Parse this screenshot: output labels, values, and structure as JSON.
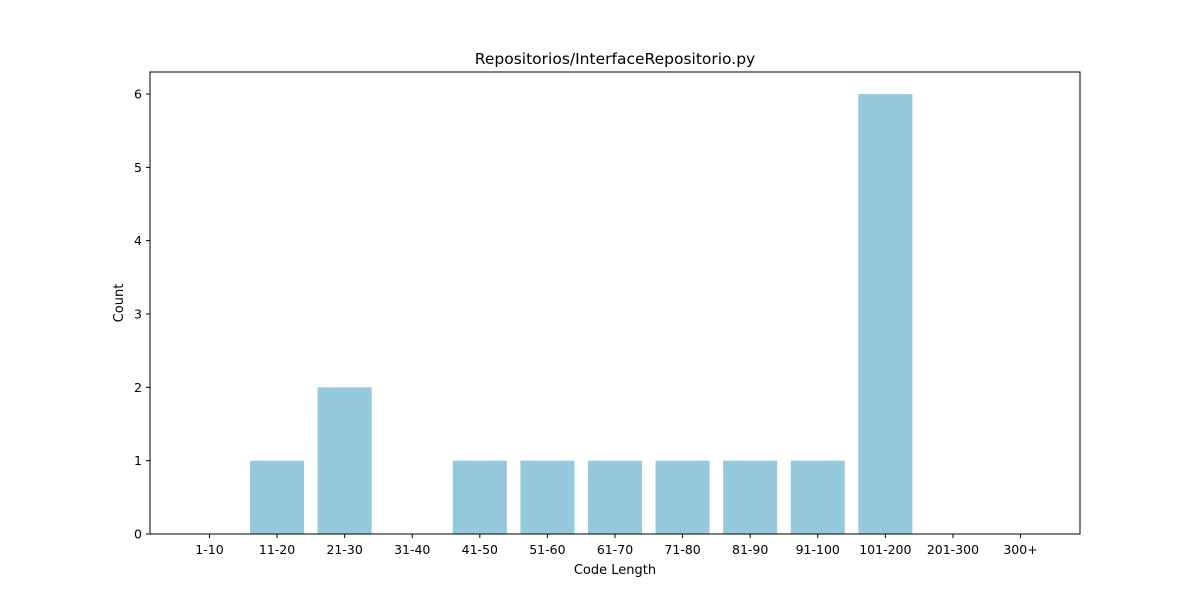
{
  "chart_data": {
    "type": "bar",
    "title": "Repositorios/InterfaceRepositorio.py",
    "xlabel": "Code Length",
    "ylabel": "Count",
    "categories": [
      "1-10",
      "11-20",
      "21-30",
      "31-40",
      "41-50",
      "51-60",
      "61-70",
      "71-80",
      "81-90",
      "91-100",
      "101-200",
      "201-300",
      "300+"
    ],
    "values": [
      0,
      1,
      2,
      0,
      1,
      1,
      1,
      1,
      1,
      1,
      6,
      0,
      0
    ],
    "ylim": [
      0,
      6.3
    ],
    "yticks": [
      0,
      1,
      2,
      3,
      4,
      5,
      6
    ],
    "bar_color": "#96c9dc",
    "grid": false,
    "legend": "none"
  }
}
